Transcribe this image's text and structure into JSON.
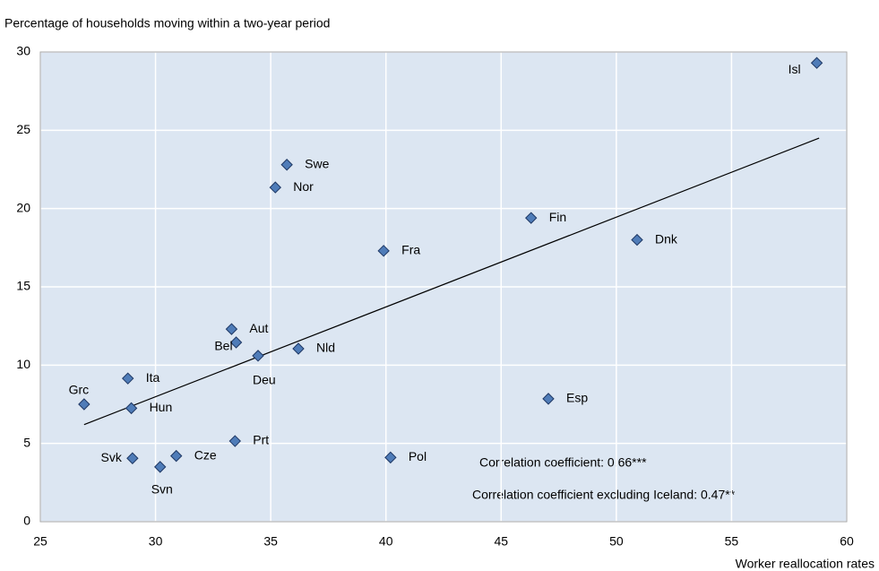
{
  "chart_data": {
    "type": "scatter",
    "title": "Percentage of households moving within a two-year period",
    "x_label": "Worker reallocation rates",
    "labels": [
      "Isl",
      "Swe",
      "Nor",
      "Fin",
      "Dnk",
      "Fra",
      "Aut",
      "Bel",
      "Deu",
      "Nld",
      "Ita",
      "Grc",
      "Hun",
      "Esp",
      "Prt",
      "Svk",
      "Cze",
      "Svn",
      "Pol"
    ],
    "x": [
      58.7,
      35.7,
      35.2,
      46.3,
      50.9,
      39.9,
      33.3,
      33.5,
      34.45,
      36.2,
      28.8,
      26.9,
      28.95,
      47.05,
      33.45,
      29.0,
      30.9,
      30.2,
      40.2
    ],
    "y": [
      29.3,
      22.8,
      21.35,
      19.4,
      18.0,
      17.3,
      12.3,
      11.45,
      10.6,
      11.05,
      9.15,
      7.5,
      7.25,
      7.85,
      5.15,
      4.05,
      4.2,
      3.5,
      4.1
    ],
    "color": "#4f7cb8",
    "trendline": {
      "x": [
        26.9,
        58.8
      ],
      "y": [
        6.2,
        24.5
      ]
    },
    "annotations": [
      "Correlation coefficient: 0.66***",
      "Correlation coefficient  excluding Iceland: 0.47**"
    ],
    "xlim": [
      25,
      60
    ],
    "xticks": [
      25,
      30,
      35,
      40,
      45,
      50,
      55,
      60
    ],
    "ylim": [
      0,
      30
    ],
    "yticks": [
      0,
      5,
      10,
      15,
      20,
      25,
      30
    ],
    "grid": true
  }
}
